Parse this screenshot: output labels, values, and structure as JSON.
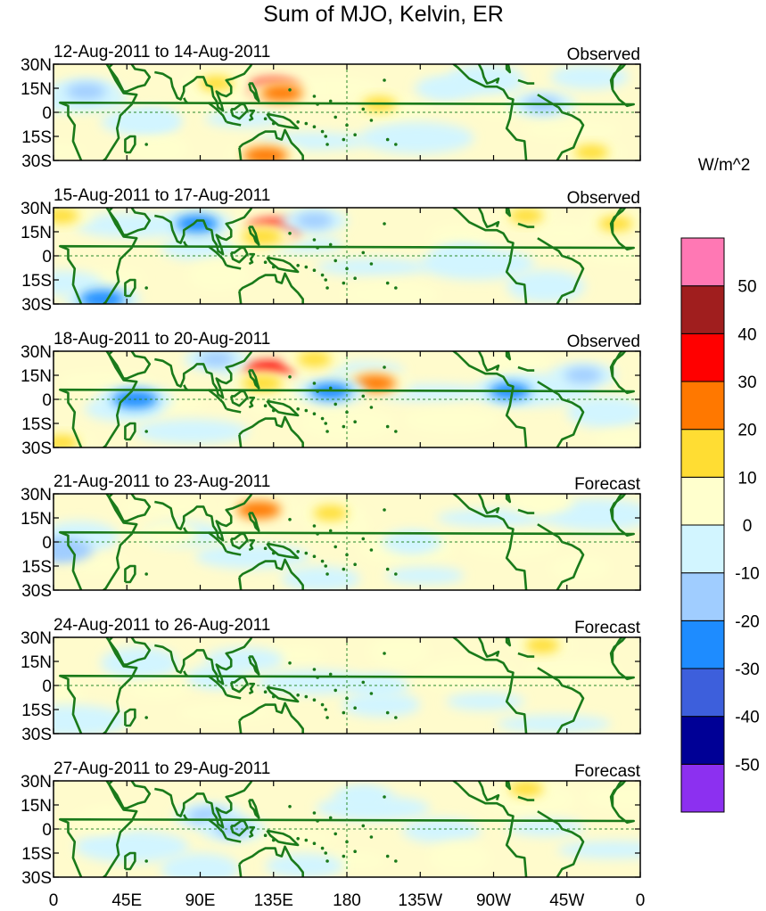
{
  "chart_data": {
    "type": "heatmap",
    "title": "Sum of MJO, Kelvin, ER",
    "units": "W/m^2",
    "lat_ticks": [
      "30N",
      "15N",
      "0",
      "15S",
      "30S"
    ],
    "lon_ticks": [
      "0",
      "45E",
      "90E",
      "135E",
      "180",
      "135W",
      "90W",
      "45W",
      "0"
    ],
    "panels": [
      {
        "period": "12-Aug-2011 to 14-Aug-2011",
        "kind": "Observed",
        "features": [
          {
            "lon": 135,
            "lat": 15,
            "value": 34
          },
          {
            "lon": 140,
            "lat": 12,
            "value": 22
          },
          {
            "lon": 130,
            "lat": -27,
            "value": 25
          },
          {
            "lon": 20,
            "lat": 13,
            "value": -18
          },
          {
            "lon": 100,
            "lat": 18,
            "value": 12
          },
          {
            "lon": 200,
            "lat": 5,
            "value": 12
          },
          {
            "lon": 300,
            "lat": 5,
            "value": -15
          },
          {
            "lon": 330,
            "lat": -25,
            "value": 12
          },
          {
            "lon": 240,
            "lat": 15,
            "value": -8
          },
          {
            "lon": 60,
            "lat": -5,
            "value": -8
          }
        ]
      },
      {
        "period": "15-Aug-2011 to 17-Aug-2011",
        "kind": "Observed",
        "features": [
          {
            "lon": 135,
            "lat": 17,
            "value": 36
          },
          {
            "lon": 128,
            "lat": 12,
            "value": 20
          },
          {
            "lon": 88,
            "lat": 20,
            "value": -22
          },
          {
            "lon": 30,
            "lat": -27,
            "value": -25
          },
          {
            "lon": 5,
            "lat": 25,
            "value": 12
          },
          {
            "lon": 290,
            "lat": 25,
            "value": 12
          },
          {
            "lon": 160,
            "lat": 22,
            "value": -15
          },
          {
            "lon": 345,
            "lat": 20,
            "value": 12
          },
          {
            "lon": 250,
            "lat": 0,
            "value": -8
          }
        ]
      },
      {
        "period": "18-Aug-2011 to 20-Aug-2011",
        "kind": "Observed",
        "features": [
          {
            "lon": 132,
            "lat": 18,
            "value": 32
          },
          {
            "lon": 128,
            "lat": 10,
            "value": 20
          },
          {
            "lon": 197,
            "lat": 10,
            "value": 22
          },
          {
            "lon": 170,
            "lat": 5,
            "value": -20
          },
          {
            "lon": 50,
            "lat": 0,
            "value": -25
          },
          {
            "lon": 5,
            "lat": -27,
            "value": 12
          },
          {
            "lon": 280,
            "lat": 5,
            "value": -20
          },
          {
            "lon": 325,
            "lat": 15,
            "value": -15
          },
          {
            "lon": 160,
            "lat": 25,
            "value": 12
          },
          {
            "lon": 100,
            "lat": 25,
            "value": -12
          }
        ]
      },
      {
        "period": "21-Aug-2011 to 23-Aug-2011",
        "kind": "Forecast",
        "features": [
          {
            "lon": 126,
            "lat": 20,
            "value": 24
          },
          {
            "lon": 170,
            "lat": 18,
            "value": 12
          },
          {
            "lon": 5,
            "lat": -5,
            "value": -10
          },
          {
            "lon": 70,
            "lat": 5,
            "value": 8
          },
          {
            "lon": 220,
            "lat": 0,
            "value": -8
          },
          {
            "lon": 300,
            "lat": 25,
            "value": 10
          }
        ]
      },
      {
        "period": "24-Aug-2011 to 26-Aug-2011",
        "kind": "Forecast",
        "features": [
          {
            "lon": 100,
            "lat": 5,
            "value": -8
          },
          {
            "lon": 300,
            "lat": 25,
            "value": 12
          },
          {
            "lon": 200,
            "lat": 0,
            "value": -6
          }
        ]
      },
      {
        "period": "27-Aug-2011 to 29-Aug-2011",
        "kind": "Forecast",
        "features": [
          {
            "lon": 95,
            "lat": 8,
            "value": -18
          },
          {
            "lon": 110,
            "lat": 0,
            "value": -14
          },
          {
            "lon": 30,
            "lat": 5,
            "value": 10
          },
          {
            "lon": 290,
            "lat": 25,
            "value": 12
          },
          {
            "lon": 190,
            "lat": 20,
            "value": -8
          }
        ]
      }
    ],
    "colorbar": {
      "levels": [
        -50,
        -40,
        -30,
        -20,
        -10,
        0,
        10,
        20,
        30,
        40,
        50
      ],
      "labels": [
        "-50",
        "-40",
        "-30",
        "-20",
        "-10",
        "0",
        "10",
        "20",
        "30",
        "40",
        "50"
      ],
      "colors": [
        "#8c30f0",
        "#000096",
        "#3d5fdc",
        "#1e8cff",
        "#a0cdff",
        "#d2f5ff",
        "#ffffcd",
        "#ffdd33",
        "#ff7800",
        "#ff0000",
        "#a01e1e",
        "#ff78b4"
      ]
    }
  }
}
